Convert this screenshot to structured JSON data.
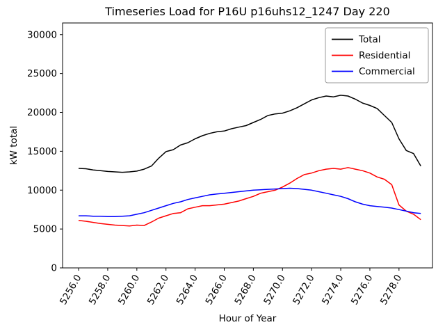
{
  "chart_data": {
    "type": "line",
    "title": "Timeseries Load for P16U p16uhs12_1247  Day 220",
    "xlabel": "Hour of Year",
    "ylabel": "kW total",
    "grid": false,
    "legend_position": "upper right",
    "xlim": [
      5254.9,
      5280.3
    ],
    "ylim": [
      0,
      31500
    ],
    "x_tick_values": [
      5256,
      5258,
      5260,
      5262,
      5264,
      5266,
      5268,
      5270,
      5272,
      5274,
      5276,
      5278
    ],
    "x_tick_labels": [
      "5256.0",
      "5258.0",
      "5260.0",
      "5262.0",
      "5264.0",
      "5266.0",
      "5268.0",
      "5270.0",
      "5272.0",
      "5274.0",
      "5276.0",
      "5278.0"
    ],
    "y_tick_values": [
      0,
      5000,
      10000,
      15000,
      20000,
      25000,
      30000
    ],
    "y_tick_labels": [
      "0",
      "5000",
      "10000",
      "15000",
      "20000",
      "25000",
      "30000"
    ],
    "x": [
      5256.0,
      5256.5,
      5257.0,
      5257.5,
      5258.0,
      5258.5,
      5259.0,
      5259.5,
      5260.0,
      5260.5,
      5261.0,
      5261.5,
      5262.0,
      5262.5,
      5263.0,
      5263.5,
      5264.0,
      5264.5,
      5265.0,
      5265.5,
      5266.0,
      5266.5,
      5267.0,
      5267.5,
      5268.0,
      5268.5,
      5269.0,
      5269.5,
      5270.0,
      5270.5,
      5271.0,
      5271.5,
      5272.0,
      5272.5,
      5273.0,
      5273.5,
      5274.0,
      5274.5,
      5275.0,
      5275.5,
      5276.0,
      5276.5,
      5277.0,
      5277.5,
      5278.0,
      5278.5,
      5279.0,
      5279.5
    ],
    "series": [
      {
        "name": "Total",
        "color": "#000000",
        "values": [
          12800,
          12750,
          12600,
          12500,
          12400,
          12350,
          12300,
          12350,
          12450,
          12700,
          13100,
          14100,
          14950,
          15200,
          15800,
          16100,
          16600,
          17000,
          17300,
          17500,
          17600,
          17900,
          18100,
          18300,
          18700,
          19100,
          19600,
          19800,
          19900,
          20200,
          20600,
          21100,
          21600,
          21900,
          22100,
          22000,
          22200,
          22100,
          21700,
          21200,
          20900,
          20500,
          19600,
          18700,
          16600,
          15100,
          14700,
          13100
        ]
      },
      {
        "name": "Residential",
        "color": "#ff0000",
        "values": [
          6100,
          6000,
          5850,
          5700,
          5600,
          5500,
          5450,
          5400,
          5500,
          5450,
          5900,
          6400,
          6700,
          7000,
          7100,
          7600,
          7800,
          8000,
          8000,
          8100,
          8200,
          8400,
          8600,
          8900,
          9200,
          9600,
          9800,
          10000,
          10400,
          10900,
          11500,
          12000,
          12200,
          12500,
          12700,
          12800,
          12700,
          12900,
          12700,
          12500,
          12200,
          11700,
          11400,
          10700,
          8100,
          7300,
          6900,
          6200
        ]
      },
      {
        "name": "Commercial",
        "color": "#0000ff",
        "values": [
          6700,
          6700,
          6650,
          6650,
          6600,
          6600,
          6650,
          6700,
          6900,
          7100,
          7400,
          7700,
          8000,
          8300,
          8500,
          8800,
          9000,
          9200,
          9400,
          9500,
          9600,
          9700,
          9800,
          9900,
          10000,
          10050,
          10100,
          10150,
          10200,
          10250,
          10200,
          10100,
          10000,
          9800,
          9600,
          9400,
          9200,
          8900,
          8500,
          8200,
          8000,
          7900,
          7800,
          7700,
          7500,
          7300,
          7100,
          7000
        ]
      }
    ]
  }
}
